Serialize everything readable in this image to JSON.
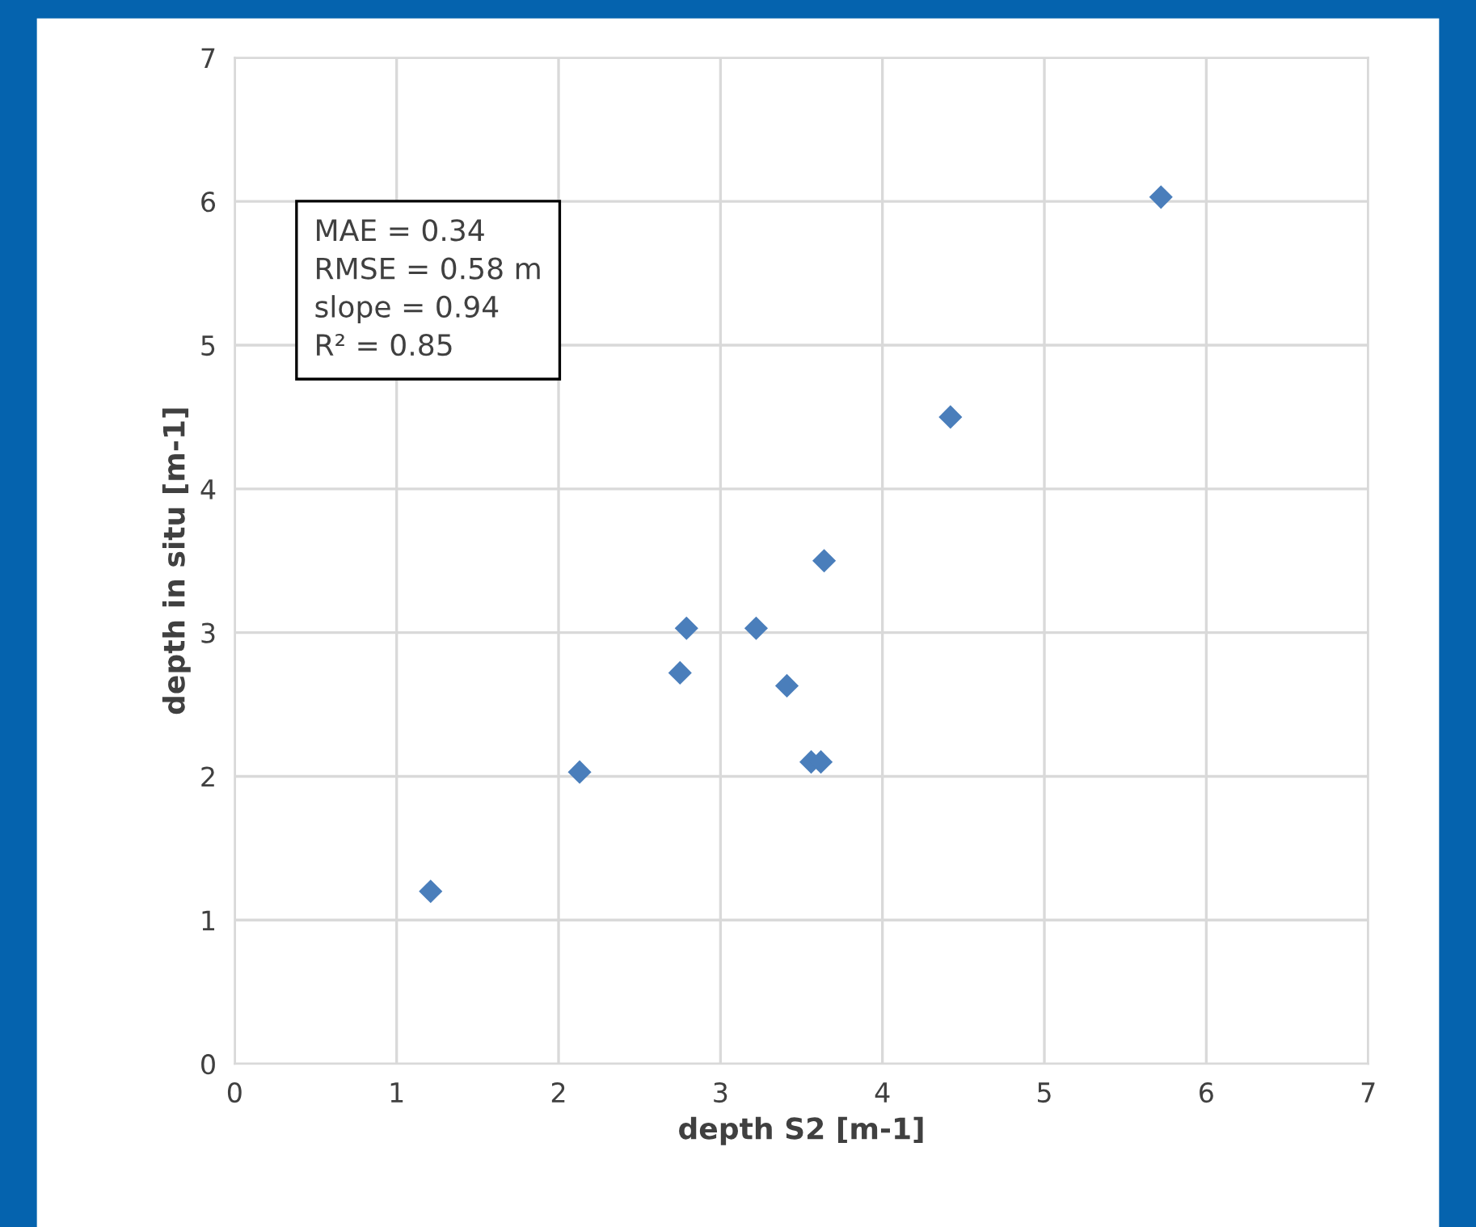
{
  "chart_data": {
    "type": "scatter",
    "xlabel": "depth S2 [m-1]",
    "ylabel": "depth in situ [m-1]",
    "x": [
      1.21,
      2.13,
      2.75,
      2.79,
      3.22,
      3.41,
      3.56,
      3.62,
      3.64,
      4.42,
      5.72
    ],
    "values": [
      1.2,
      2.03,
      2.72,
      3.03,
      3.03,
      2.63,
      2.1,
      2.1,
      3.5,
      4.5,
      6.03
    ],
    "color": "#4a7ebb",
    "marker": "diamond",
    "xlim": [
      0,
      7
    ],
    "ylim": [
      0,
      7
    ],
    "xticks": [
      0,
      1,
      2,
      3,
      4,
      5,
      6,
      7
    ],
    "yticks": [
      0,
      1,
      2,
      3,
      4,
      5,
      6,
      7
    ],
    "grid": true,
    "annotations": [
      "MAE = 0.34",
      "RMSE = 0.58 m",
      "slope = 0.94",
      "R² = 0.85"
    ]
  }
}
